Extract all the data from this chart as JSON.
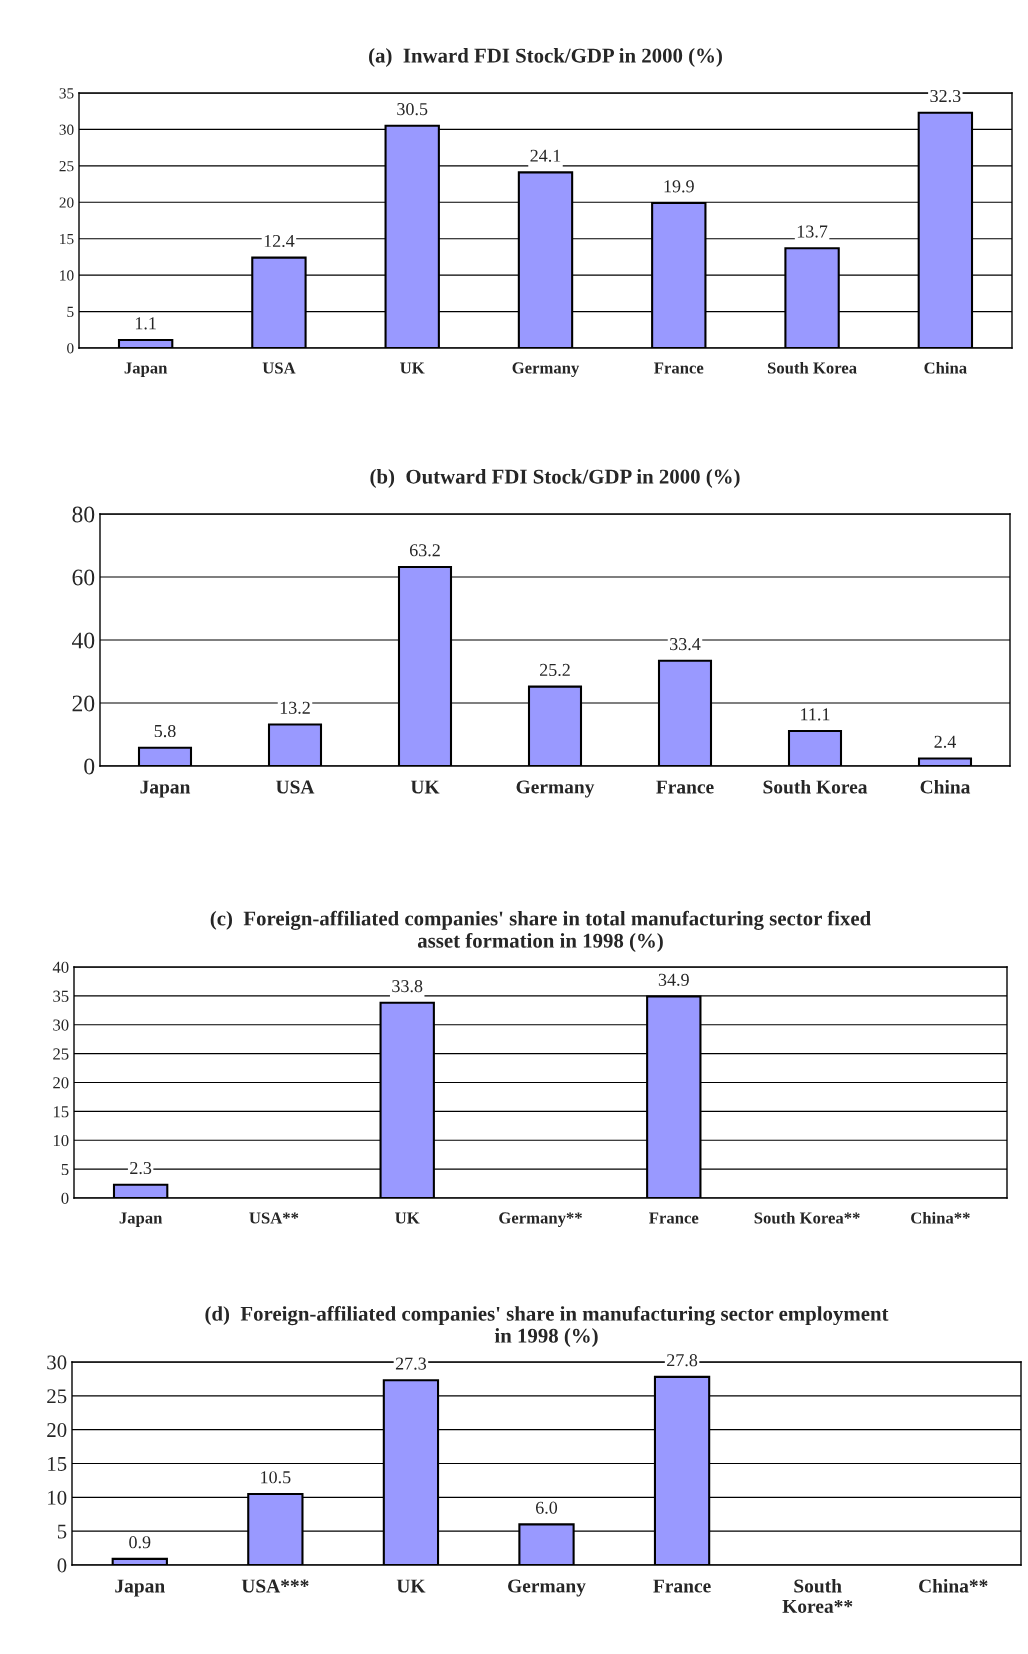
{
  "chart_data": [
    {
      "type": "bar",
      "title": "(a)  Inward FDI Stock/GDP in 2000 (%)",
      "categories": [
        "Japan",
        "USA",
        "UK",
        "Germany",
        "France",
        "South Korea",
        "China"
      ],
      "values": [
        1.1,
        12.4,
        30.5,
        24.1,
        19.9,
        13.7,
        32.3
      ],
      "data_labels": true,
      "color": "#9999ff",
      "ylim": [
        0,
        35
      ],
      "yticks": [
        0,
        5,
        10,
        15,
        20,
        25,
        30,
        35
      ],
      "grid": "y"
    },
    {
      "type": "bar",
      "title": "(b)  Outward FDI Stock/GDP in 2000 (%)",
      "categories": [
        "Japan",
        "USA",
        "UK",
        "Germany",
        "France",
        "South Korea",
        "China"
      ],
      "values": [
        5.8,
        13.2,
        63.2,
        25.2,
        33.4,
        11.1,
        2.4
      ],
      "data_labels": true,
      "color": "#9999ff",
      "ylim": [
        0,
        80
      ],
      "yticks": [
        0,
        20,
        40,
        60,
        80
      ],
      "grid": "y"
    },
    {
      "type": "bar",
      "title": "(c)  Foreign-affiliated companies' share in total manufacturing sector fixed\nasset formation in 1998 (%)",
      "categories": [
        "Japan",
        "USA**",
        "UK",
        "Germany**",
        "France",
        "South Korea**",
        "China**"
      ],
      "values": [
        2.3,
        null,
        33.8,
        null,
        34.9,
        null,
        null
      ],
      "data_labels": true,
      "color": "#9999ff",
      "ylim": [
        0,
        40
      ],
      "yticks": [
        0,
        5,
        10,
        15,
        20,
        25,
        30,
        35,
        40
      ],
      "grid": "y"
    },
    {
      "type": "bar",
      "title": "(d)  Foreign-affiliated companies' share in manufacturing sector employment\nin 1998 (%)",
      "categories": [
        "Japan",
        "USA***",
        "UK",
        "Germany",
        "France",
        "South\nKorea**",
        "China**"
      ],
      "values": [
        0.9,
        10.5,
        27.3,
        6.0,
        27.8,
        null,
        null
      ],
      "value_labels": [
        "0.9",
        "10.5",
        "27.3",
        "6.0",
        "27.8",
        null,
        null
      ],
      "color": "#9999ff",
      "ylim": [
        0,
        30
      ],
      "yticks": [
        0,
        5,
        10,
        15,
        20,
        25,
        30
      ],
      "grid": "y"
    }
  ]
}
